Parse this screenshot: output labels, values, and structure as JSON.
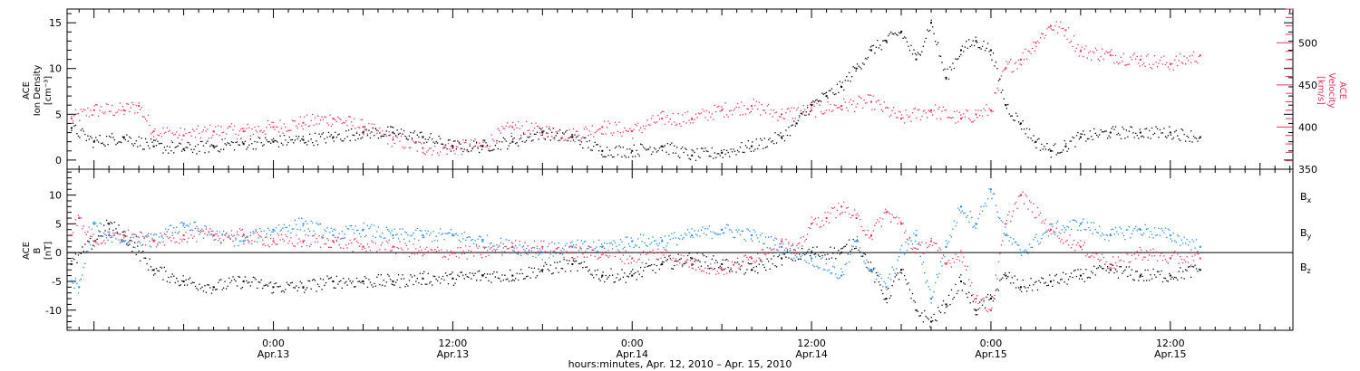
{
  "colors": {
    "black": "#000000",
    "pink": "#e8325c",
    "blue": "#1e88e5"
  },
  "xlabel": "hours:minutes, Apr. 12, 2010 – Apr. 15, 2010",
  "x_ticks": [
    {
      "hour": 24,
      "time": "0:00",
      "date": "Apr.13"
    },
    {
      "hour": 36,
      "time": "12:00",
      "date": "Apr.13"
    },
    {
      "hour": 48,
      "time": "0:00",
      "date": "Apr.14"
    },
    {
      "hour": 60,
      "time": "12:00",
      "date": "Apr.14"
    },
    {
      "hour": 72,
      "time": "0:00",
      "date": "Apr.15"
    },
    {
      "hour": 84,
      "time": "12:00",
      "date": "Apr.15"
    }
  ],
  "chart_data": [
    {
      "type": "scatter",
      "panel": "top",
      "xlim_hours": [
        10.2,
        92.2
      ],
      "ylabel_left": [
        "ACE",
        "Ion Density",
        "[cm⁻³]"
      ],
      "ylabel_right": [
        "ACE",
        "Velocity",
        "[km/s]"
      ],
      "ylim_left": [
        -1,
        16.5
      ],
      "ylim_right": [
        350,
        540
      ],
      "yticks_left": [
        "0",
        "5",
        "10",
        "15"
      ],
      "yticks_right": [
        "350",
        "400",
        "450",
        "500"
      ],
      "series": [
        {
          "axis": "left",
          "color": "#000000",
          "x": [
            10.5,
            12,
            14,
            16,
            18,
            20,
            22,
            24,
            26,
            28,
            30,
            32,
            34,
            36,
            38,
            40,
            42,
            44,
            46,
            48,
            50,
            52,
            54,
            56,
            58,
            59,
            60,
            61,
            62,
            63,
            64,
            65,
            66,
            67,
            68,
            69,
            70,
            71,
            72,
            73,
            74,
            75,
            76,
            77,
            78,
            80,
            82,
            84,
            86
          ],
          "y": [
            3.5,
            2,
            2.5,
            1.5,
            1.2,
            1.5,
            1.8,
            2,
            2.2,
            2.5,
            3,
            3,
            2.5,
            1.5,
            1.5,
            2,
            3,
            2.5,
            1,
            1,
            1.5,
            0.5,
            0.8,
            1.5,
            2.5,
            4,
            6,
            7,
            8,
            10,
            12,
            13,
            14,
            11,
            15,
            9,
            12,
            13,
            12,
            6,
            4,
            2,
            1,
            1.5,
            2.5,
            3,
            3,
            3,
            2.5
          ]
        },
        {
          "axis": "right",
          "color": "#e8325c",
          "x": [
            10.5,
            12,
            14,
            15,
            16,
            18,
            20,
            22,
            24,
            26,
            28,
            30,
            32,
            34,
            36,
            38,
            40,
            42,
            44,
            46,
            48,
            50,
            52,
            54,
            56,
            58,
            60,
            62,
            64,
            66,
            68,
            70,
            71,
            72,
            73,
            74,
            75,
            76,
            77,
            78,
            80,
            82,
            84,
            86
          ],
          "y": [
            410,
            420,
            420,
            425,
            395,
            390,
            395,
            395,
            400,
            405,
            410,
            400,
            385,
            375,
            375,
            378,
            400,
            395,
            390,
            400,
            395,
            410,
            410,
            420,
            425,
            415,
            420,
            425,
            430,
            410,
            420,
            410,
            415,
            420,
            470,
            480,
            500,
            520,
            515,
            490,
            485,
            480,
            475,
            485
          ]
        }
      ]
    },
    {
      "type": "scatter",
      "panel": "bottom",
      "xlim_hours": [
        10.2,
        92.2
      ],
      "ylabel_left": [
        "ACE",
        "B",
        "[nT]"
      ],
      "ylim": [
        -13.5,
        14.5
      ],
      "yticks": [
        "-10",
        "-5",
        "0",
        "5",
        "10"
      ],
      "zero_line": true,
      "series": [
        {
          "name": "B",
          "sub": "x",
          "color": "#000000",
          "x": [
            10.5,
            12,
            13,
            14,
            16,
            18,
            20,
            22,
            24,
            26,
            28,
            30,
            32,
            34,
            36,
            38,
            40,
            42,
            44,
            46,
            48,
            50,
            52,
            54,
            56,
            58,
            60,
            62,
            63,
            64,
            65,
            66,
            67,
            68,
            69,
            70,
            71,
            72,
            73,
            74,
            76,
            78,
            80,
            82,
            84,
            86
          ],
          "y": [
            -2,
            2,
            5,
            3,
            -3,
            -5,
            -6,
            -5,
            -6,
            -6,
            -5,
            -5,
            -5,
            -4.5,
            -4.5,
            -4,
            -4,
            -3,
            -2,
            -4,
            -4,
            -2,
            -1,
            -2,
            -3,
            -1,
            0,
            0,
            2,
            -3,
            -8,
            -3,
            -10,
            -12,
            -9,
            -5,
            -10,
            -8,
            -4,
            -6,
            -5,
            -4,
            -3,
            -4,
            -4,
            -3
          ]
        },
        {
          "name": "B",
          "sub": "y",
          "color": "#1e88e5",
          "x": [
            10.5,
            11,
            12,
            13,
            14,
            16,
            18,
            20,
            22,
            24,
            26,
            28,
            30,
            32,
            34,
            36,
            38,
            40,
            42,
            44,
            46,
            48,
            50,
            52,
            54,
            56,
            58,
            60,
            62,
            63,
            64,
            65,
            66,
            67,
            68,
            69,
            70,
            71,
            72,
            73,
            74,
            76,
            78,
            80,
            82,
            84,
            86
          ],
          "y": [
            -5,
            -6,
            5,
            3,
            2,
            2,
            5,
            3,
            2,
            4,
            5,
            3,
            4,
            3,
            3,
            3,
            2,
            1,
            0,
            1,
            1,
            2,
            2,
            3,
            4,
            3,
            1,
            -1,
            -4,
            2,
            -3,
            -6,
            0,
            3,
            -8,
            1,
            8,
            5,
            11,
            3,
            0,
            4,
            5,
            3,
            4,
            3,
            1
          ]
        },
        {
          "name": "B",
          "sub": "z",
          "color": "#e8325c",
          "x": [
            10.5,
            11,
            12,
            14,
            16,
            18,
            20,
            22,
            24,
            26,
            28,
            30,
            32,
            34,
            36,
            38,
            40,
            42,
            44,
            46,
            48,
            50,
            52,
            54,
            56,
            58,
            59,
            60,
            61,
            62,
            63,
            64,
            65,
            66,
            67,
            68,
            69,
            70,
            71,
            72,
            73,
            74,
            76,
            78,
            80,
            82,
            84,
            86
          ],
          "y": [
            3,
            6,
            2,
            3,
            2,
            3,
            3,
            3,
            2,
            2,
            2,
            1,
            1,
            0,
            0,
            0,
            1,
            1,
            0,
            0,
            -1,
            0,
            -2,
            -3,
            -1,
            2,
            0,
            5,
            6,
            8,
            6,
            3,
            7,
            5,
            0,
            2,
            -2,
            0,
            -8,
            -10,
            5,
            10,
            4,
            1,
            -2,
            0,
            -1,
            -1
          ]
        }
      ]
    }
  ]
}
